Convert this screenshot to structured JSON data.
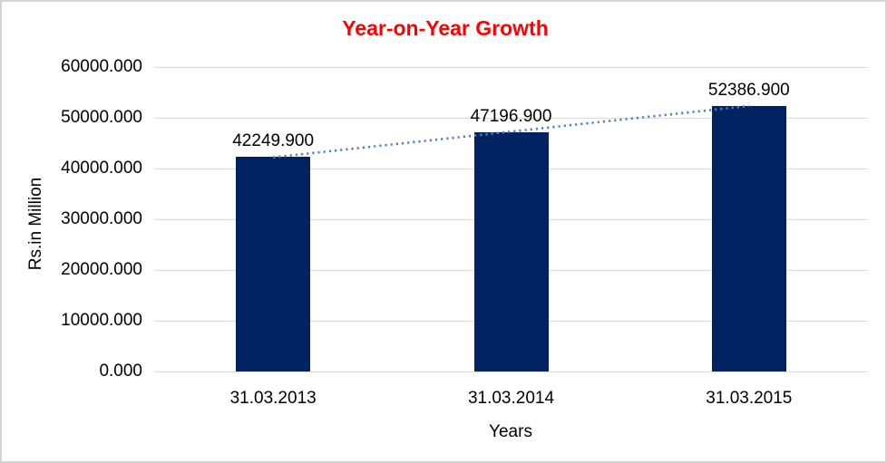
{
  "chart_data": {
    "type": "bar",
    "title": "Year-on-Year Growth",
    "title_color": "#ff0000",
    "categories": [
      "31.03.2013",
      "31.03.2014",
      "31.03.2015"
    ],
    "values": [
      42249.9,
      47196.9,
      52386.9
    ],
    "data_labels": [
      "42249.900",
      "47196.900",
      "52386.900"
    ],
    "xlabel": "Years",
    "ylabel": "Rs.in Million",
    "ylim": [
      0,
      60000
    ],
    "ytick_step": 10000,
    "ytick_labels": [
      "0.000",
      "10000.000",
      "20000.000",
      "30000.000",
      "40000.000",
      "50000.000",
      "60000.000"
    ],
    "grid": true,
    "legend": "none",
    "bar_color": "#022362",
    "gridline_color": "#d9d9d9",
    "axis_text_color": "#000000",
    "trendline": {
      "type": "linear",
      "style": "dotted",
      "color": "#4f81bd"
    }
  }
}
